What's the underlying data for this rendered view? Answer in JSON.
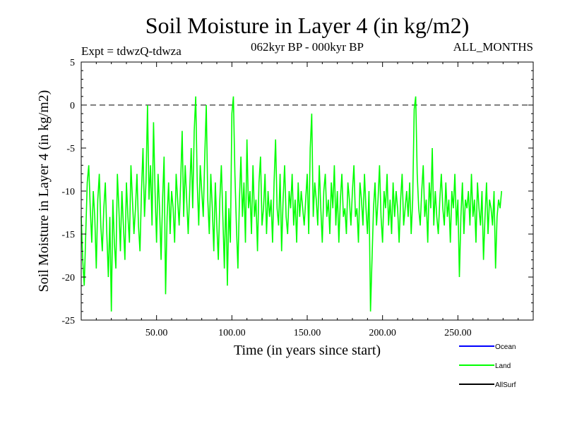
{
  "chart_data": {
    "type": "line",
    "title": "Soil Moisture in Layer 4 (in kg/m2)",
    "subtitle_left": "Expt = tdwzQ-tdwza",
    "subtitle_center": "062kyr BP - 000kyr BP",
    "subtitle_right": "ALL_MONTHS",
    "xlabel": "Time (in years since start)",
    "ylabel": "Soil Moisture in Layer 4 (in kg/m2)",
    "xlim": [
      0,
      300
    ],
    "ylim": [
      -25,
      5
    ],
    "x_ticks": [
      50,
      100,
      150,
      200,
      250
    ],
    "x_tick_labels": [
      "50.00",
      "100.00",
      "150.00",
      "200.00",
      "250.00"
    ],
    "y_ticks": [
      5,
      0,
      -5,
      -10,
      -15,
      -20,
      -25
    ],
    "y_tick_labels": [
      "5",
      "0",
      "-5",
      "-10",
      "-15",
      "-20",
      "-25"
    ],
    "reference_line": 0,
    "legend_placement": "bottom-right",
    "series": [
      {
        "name": "Ocean",
        "color": "#0000ff",
        "values": []
      },
      {
        "name": "Land",
        "color": "#00ff00",
        "x_start": 0,
        "x_step": 1,
        "values": [
          -13,
          -18,
          -21,
          -15,
          -9,
          -7,
          -12,
          -16,
          -10,
          -13,
          -19,
          -11,
          -8,
          -14,
          -17,
          -12,
          -9,
          -15,
          -20,
          -13,
          -24,
          -11,
          -16,
          -19,
          -8,
          -12,
          -17,
          -10,
          -14,
          -18,
          -9,
          -13,
          -16,
          -7,
          -11,
          -15,
          -12,
          -8,
          -14,
          -17,
          -10,
          -5,
          -13,
          -9,
          0,
          -11,
          -7,
          -14,
          -2,
          -10,
          -16,
          -8,
          -12,
          -18,
          -11,
          -6,
          -22,
          -13,
          -9,
          -15,
          -10,
          -12,
          -16,
          -8,
          -11,
          -14,
          -9,
          -3,
          -13,
          -7,
          -11,
          -15,
          -10,
          -5,
          -12,
          -3,
          1,
          -9,
          -14,
          -7,
          -10,
          -13,
          -6,
          0,
          -11,
          -15,
          -8,
          -12,
          -17,
          -9,
          -14,
          -18,
          -11,
          -7,
          -13,
          -19,
          -10,
          -21,
          -12,
          -16,
          -1,
          1,
          -8,
          -14,
          -19,
          -11,
          -6,
          -13,
          -9,
          -16,
          -4,
          -12,
          -10,
          -15,
          -7,
          -13,
          -11,
          -17,
          -9,
          -6,
          -14,
          -12,
          -8,
          -15,
          -10,
          -13,
          -11,
          -16,
          -9,
          -4,
          -12,
          -14,
          -8,
          -17,
          -11,
          -7,
          -13,
          -15,
          -10,
          -12,
          -8,
          -14,
          -11,
          -16,
          -9,
          -13,
          -10,
          -12,
          -14,
          -11,
          -8,
          -15,
          -5,
          -1,
          -13,
          -9,
          -11,
          -14,
          -7,
          -12,
          -16,
          -10,
          -8,
          -13,
          -11,
          -15,
          -9,
          -12,
          -7,
          -14,
          -10,
          -16,
          -11,
          -8,
          -13,
          -12,
          -15,
          -9,
          -11,
          -14,
          -10,
          -7,
          -13,
          -12,
          -16,
          -9,
          -11,
          -14,
          -8,
          -12,
          -15,
          -10,
          -24,
          -18,
          -12,
          -9,
          -14,
          -11,
          -7,
          -13,
          -16,
          -10,
          -12,
          -8,
          -14,
          -11,
          -15,
          -9,
          -13,
          -10,
          -12,
          -16,
          -11,
          -8,
          -14,
          -12,
          -10,
          -13,
          -9,
          -15,
          -11,
          -0.5,
          1,
          -8,
          -12,
          -14,
          -10,
          -7,
          -13,
          -11,
          -16,
          -9,
          -12,
          -5,
          -14,
          -10,
          -13,
          -15,
          -11,
          -8,
          -12,
          -14,
          -9,
          -13,
          -11,
          -16,
          -10,
          -12,
          -8,
          -14,
          -11,
          -20,
          -13,
          -9,
          -15,
          -11,
          -12,
          -10,
          -14,
          -8,
          -13,
          -11,
          -16,
          -9,
          -12,
          -14,
          -10,
          -18,
          -13,
          -9,
          -15,
          -11,
          -12,
          -14,
          -10,
          -19,
          -13,
          -11,
          -12,
          -10
        ]
      },
      {
        "name": "AllSurf",
        "color": "#000000",
        "values": []
      }
    ]
  }
}
